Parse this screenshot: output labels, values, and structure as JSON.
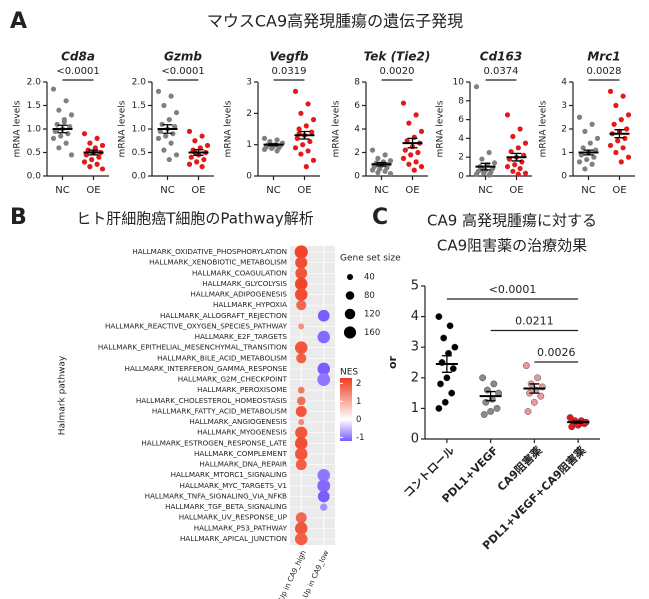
{
  "panels": [
    {
      "letter": "A",
      "title": "マウスCA9高発現腫瘍の遺伝子発現"
    },
    {
      "letter": "B",
      "title": "ヒト肝細胞癌T細胞のPathway解析"
    },
    {
      "letter": "C",
      "title": [
        "CA9 高発現腫瘍に対する",
        "CA9阻害薬の治療効果"
      ]
    }
  ],
  "chart_data": [
    {
      "type": "strip",
      "title": "Cd8a",
      "annotation": "<0.0001",
      "ylabel": "mRNA levels",
      "categories": [
        "NC",
        "OE"
      ],
      "colors": [
        "#808080",
        "#e31a1c"
      ],
      "values": [
        [
          1.85,
          1.6,
          1.4,
          1.3,
          1.2,
          1.1,
          1.05,
          1.0,
          0.95,
          0.9,
          0.85,
          0.8,
          0.7,
          0.6,
          0.45,
          1.15,
          0.98
        ],
        [
          0.9,
          0.8,
          0.7,
          0.65,
          0.6,
          0.55,
          0.5,
          0.5,
          0.45,
          0.4,
          0.35,
          0.3,
          0.25,
          0.2,
          0.15,
          0.55
        ]
      ],
      "means": [
        1.0,
        0.5
      ],
      "errors": [
        0.08,
        0.05
      ],
      "ylim": [
        0,
        2
      ],
      "yticks": [
        {
          "value": 0,
          "label": "0.0"
        },
        0.5,
        {
          "value": 1,
          "label": "1.0"
        },
        1.5,
        {
          "value": 2,
          "label": "2.0"
        }
      ]
    },
    {
      "type": "strip",
      "title": "Gzmb",
      "annotation": "<0.0001",
      "ylabel": "mRNA levels",
      "categories": [
        "NC",
        "OE"
      ],
      "colors": [
        "#808080",
        "#e31a1c"
      ],
      "values": [
        [
          1.8,
          1.7,
          1.5,
          1.35,
          1.2,
          1.1,
          1.05,
          1.0,
          0.95,
          0.9,
          0.85,
          0.8,
          0.7,
          0.55,
          0.45,
          0.35
        ],
        [
          0.95,
          0.85,
          0.75,
          0.65,
          0.6,
          0.55,
          0.5,
          0.45,
          0.4,
          0.35,
          0.3,
          0.25,
          0.2,
          0.5
        ]
      ],
      "means": [
        1.0,
        0.5
      ],
      "errors": [
        0.09,
        0.06
      ],
      "ylim": [
        0,
        2
      ],
      "yticks": [
        {
          "value": 0,
          "label": "0.0"
        },
        0.5,
        {
          "value": 1,
          "label": "1.0"
        },
        1.5,
        {
          "value": 2,
          "label": "2.0"
        }
      ]
    },
    {
      "type": "strip",
      "title": "Vegfb",
      "annotation": "0.0319",
      "ylabel": "mRNA levels",
      "categories": [
        "NC",
        "OE"
      ],
      "colors": [
        "#808080",
        "#e31a1c"
      ],
      "values": [
        [
          1.2,
          1.15,
          1.1,
          1.05,
          1.0,
          1.0,
          0.98,
          0.95,
          0.92,
          0.9,
          0.88,
          0.85,
          0.8,
          1.02
        ],
        [
          2.7,
          2.3,
          2.0,
          1.8,
          1.6,
          1.5,
          1.4,
          1.3,
          1.2,
          1.1,
          1.0,
          0.9,
          0.8,
          0.7,
          0.5,
          0.3,
          1.35
        ]
      ],
      "means": [
        1.0,
        1.3
      ],
      "errors": [
        0.03,
        0.12
      ],
      "ylim": [
        0,
        3
      ],
      "yticks": [
        0,
        1,
        2,
        3
      ]
    },
    {
      "type": "strip",
      "title": "Tek (Tie2)",
      "annotation": "0.0020",
      "ylabel": "mRNA levels",
      "categories": [
        "NC",
        "OE"
      ],
      "colors": [
        "#808080",
        "#e31a1c"
      ],
      "values": [
        [
          2.2,
          1.8,
          1.5,
          1.3,
          1.2,
          1.1,
          1.0,
          0.9,
          0.8,
          0.7,
          0.6,
          0.5,
          0.4,
          0.3,
          0.2
        ],
        [
          6.2,
          5.2,
          4.5,
          3.8,
          3.3,
          3.0,
          2.8,
          2.5,
          2.2,
          2.0,
          1.8,
          1.5,
          1.2,
          1.0,
          0.8,
          0.5
        ]
      ],
      "means": [
        1.0,
        2.8
      ],
      "errors": [
        0.15,
        0.4
      ],
      "ylim": [
        0,
        8
      ],
      "yticks": [
        0,
        2,
        4,
        6,
        8
      ]
    },
    {
      "type": "strip",
      "title": "Cd163",
      "annotation": "0.0374",
      "ylabel": "mRNA levels",
      "categories": [
        "NC",
        "OE"
      ],
      "colors": [
        "#808080",
        "#e31a1c"
      ],
      "values": [
        [
          9.5,
          2.5,
          1.8,
          1.4,
          1.2,
          1.0,
          0.8,
          0.6,
          0.5,
          0.4,
          0.3,
          0.2,
          0.1,
          0.7
        ],
        [
          6.5,
          5.0,
          4.2,
          3.5,
          3.0,
          2.6,
          2.2,
          2.0,
          1.8,
          1.5,
          1.2,
          1.0,
          0.8,
          0.5,
          0.3,
          0.2
        ]
      ],
      "means": [
        1.0,
        2.0
      ],
      "errors": [
        0.35,
        0.4
      ],
      "ylim": [
        0,
        10
      ],
      "yticks": [
        0,
        2,
        4,
        6,
        8,
        10
      ]
    },
    {
      "type": "strip",
      "title": "Mrc1",
      "annotation": "0.0028",
      "ylabel": "mRNA levels",
      "categories": [
        "NC",
        "OE"
      ],
      "colors": [
        "#808080",
        "#e31a1c"
      ],
      "values": [
        [
          2.5,
          2.2,
          1.9,
          1.6,
          1.4,
          1.2,
          1.1,
          1.0,
          0.9,
          0.8,
          0.7,
          0.6,
          0.5,
          0.3
        ],
        [
          3.6,
          3.4,
          3.0,
          2.6,
          2.4,
          2.2,
          2.0,
          1.9,
          1.8,
          1.6,
          1.5,
          1.3,
          1.2,
          1.0,
          0.8,
          0.6
        ]
      ],
      "means": [
        1.0,
        1.8
      ],
      "errors": [
        0.1,
        0.17
      ],
      "ylim": [
        0,
        4
      ],
      "yticks": [
        0,
        1,
        2,
        3,
        4
      ]
    },
    {
      "type": "bubble",
      "ylabel": "Halmark pathway",
      "categories": [
        "HALLMARK_OXIDATIVE_PHOSPHORYLATION",
        "HALLMARK_XENOBIOTIC_METABOLISM",
        "HALLMARK_COAGULATION",
        "HALLMARK_GLYCOLYSIS",
        "HALLMARK_ADIPOGENESIS",
        "HALLMARK_HYPOXIA",
        "HALLMARK_ALLOGRAFT_REJECTION",
        "HALLMARK_REACTIVE_OXYGEN_SPECIES_PATHWAY",
        "HALLMARK_E2F_TARGETS",
        "HALLMARK_EPITHELIAL_MESENCHYMAL_TRANSITION",
        "HALLMARK_BILE_ACID_METABOLISM",
        "HALLMARK_INTERFERON_GAMMA_RESPONSE",
        "HALLMARK_G2M_CHECKPOINT",
        "HALLMARK_PEROXISOME",
        "HALLMARK_CHOLESTEROL_HOMEOSTASIS",
        "HALLMARK_FATTY_ACID_METABOLISM",
        "HALLMARK_ANGIOGENESIS",
        "HALLMARK_MYOGENESIS",
        "HALLMARK_ESTROGEN_RESPONSE_LATE",
        "HALLMARK_COMPLEMENT",
        "HALLMARK_DNA_REPAIR",
        "HALLMARK_MTORC1_SIGNALING",
        "HALLMARK_MYC_TARGETS_V1",
        "HALLMARK_TNFA_SIGNALING_VIA_NFKB",
        "HALLMARK_TGF_BETA_SIGNALING",
        "HALLMARK_UV_RESPONSE_UP",
        "HALLMARK_P53_PATHWAY",
        "HALLMARK_APICAL_JUNCTION"
      ],
      "columns": [
        {
          "label": "Up in CA9_high",
          "sizes": [
            190,
            160,
            150,
            170,
            170,
            110,
            null,
            40,
            null,
            170,
            110,
            null,
            null,
            50,
            80,
            130,
            40,
            160,
            170,
            170,
            130,
            null,
            null,
            null,
            null,
            130,
            170,
            170
          ],
          "nes": [
            2.2,
            2.1,
            2.0,
            2.2,
            2.1,
            1.8,
            null,
            1.3,
            null,
            2.0,
            1.9,
            null,
            null,
            1.6,
            1.7,
            2.0,
            1.4,
            2.0,
            2.1,
            2.0,
            1.9,
            null,
            null,
            null,
            null,
            1.8,
            2.0,
            1.9
          ]
        },
        {
          "label": "Up in CA9_low",
          "sizes": [
            null,
            null,
            null,
            null,
            null,
            null,
            150,
            null,
            170,
            null,
            null,
            170,
            180,
            null,
            null,
            null,
            null,
            null,
            null,
            null,
            null,
            170,
            180,
            150,
            60,
            null,
            null,
            null
          ],
          "nes": [
            null,
            null,
            null,
            null,
            null,
            null,
            -1.4,
            null,
            -1.1,
            null,
            null,
            -1.3,
            -1.0,
            null,
            null,
            null,
            null,
            null,
            null,
            null,
            null,
            -1.0,
            -1.1,
            -1.2,
            -0.8,
            null,
            null,
            null
          ]
        }
      ],
      "size_title": "Gene set size",
      "size_legend": [
        40,
        80,
        120,
        160
      ],
      "color_title": "NES",
      "color_ticks": [
        2,
        1,
        0,
        -1
      ],
      "clim": [
        -1.2,
        2.3
      ],
      "colors": [
        "#7b5cff",
        "#ffffff",
        "#f03c1e"
      ]
    },
    {
      "type": "strip",
      "ylabel": "or",
      "categories": [
        "コントロール",
        "PDL1+VEGF",
        "CA9阻害薬",
        "PDL1+VEGF+CA9阻害薬"
      ],
      "colors": [
        "#000000",
        "#8a8a8a",
        "#e89a9a",
        "#e31a1c"
      ],
      "values": [
        [
          4.0,
          3.7,
          3.3,
          3.0,
          2.8,
          2.5,
          2.3,
          2.0,
          1.8,
          1.5,
          1.2,
          1.0
        ],
        [
          2.0,
          1.8,
          1.6,
          1.5,
          1.3,
          1.2,
          1.0,
          0.9,
          0.8
        ],
        [
          2.4,
          2.0,
          1.8,
          1.7,
          1.6,
          1.5,
          1.4,
          1.2,
          0.9
        ],
        [
          0.7,
          0.6,
          0.6,
          0.55,
          0.5,
          0.5,
          0.5,
          0.45,
          0.4
        ]
      ],
      "means": [
        2.45,
        1.4,
        1.65,
        0.55
      ],
      "errors": [
        0.27,
        0.15,
        0.15,
        0.03
      ],
      "ylim": [
        0,
        5
      ],
      "yticks": [
        0,
        1,
        2,
        3,
        4,
        5
      ],
      "comparisons": [
        {
          "from": 0,
          "to": 3,
          "label": "<0.0001"
        },
        {
          "from": 1,
          "to": 3,
          "label": "0.0211"
        },
        {
          "from": 2,
          "to": 3,
          "label": "0.0026"
        }
      ]
    }
  ]
}
